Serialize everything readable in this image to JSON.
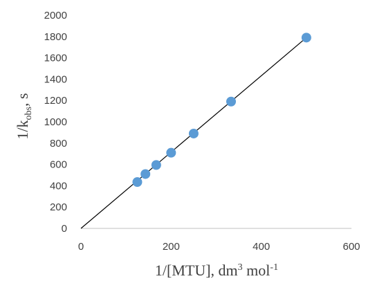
{
  "chart_data": {
    "type": "scatter",
    "x_axis": {
      "label": {
        "main": "1/[MTU], dm",
        "sup1": "3",
        "mid": " mol",
        "sup2": "-1"
      },
      "min": 0,
      "max": 600,
      "ticks": [
        0,
        200,
        400,
        600
      ]
    },
    "y_axis": {
      "label": {
        "main": "1/k",
        "sub": "obs",
        "tail": ", s"
      },
      "min": 0,
      "max": 2000,
      "ticks": [
        0,
        200,
        400,
        600,
        800,
        1000,
        1200,
        1400,
        1600,
        1800,
        2000
      ]
    },
    "series": [
      {
        "x": [
          125,
          143,
          167,
          200,
          250,
          333,
          500
        ],
        "y": [
          435,
          510,
          595,
          710,
          890,
          1190,
          1790
        ]
      }
    ],
    "trendline": {
      "x": [
        0,
        500
      ],
      "y": [
        0,
        1790
      ]
    },
    "grid": false,
    "legend": "none",
    "colors": {
      "marker": "#5b9bd5",
      "trendline": "#000000",
      "axis": "#bfbfbf",
      "text": "#404040"
    }
  }
}
